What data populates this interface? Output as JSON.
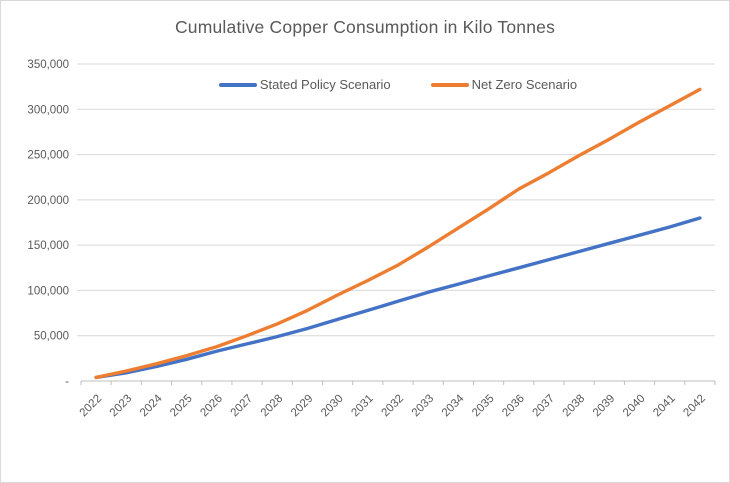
{
  "chart_data": {
    "type": "line",
    "title": "Cumulative Copper Consumption in Kilo Tonnes",
    "xlabel": "",
    "ylabel": "",
    "categories": [
      "2022",
      "2023",
      "2024",
      "2025",
      "2026",
      "2027",
      "2028",
      "2029",
      "2030",
      "2031",
      "2032",
      "2033",
      "2034",
      "2035",
      "2036",
      "2037",
      "2038",
      "2039",
      "2040",
      "2041",
      "2042"
    ],
    "series": [
      {
        "name": "Stated Policy Scenario",
        "color": "#4472C4",
        "values": [
          4000,
          9000,
          16000,
          24000,
          33000,
          41000,
          49000,
          58000,
          68000,
          78000,
          88000,
          98000,
          107000,
          116000,
          125000,
          134000,
          143000,
          152000,
          161000,
          170000,
          180000
        ]
      },
      {
        "name": "Net Zero Scenario",
        "color": "#ED7D31",
        "values": [
          4000,
          11000,
          19000,
          28000,
          38000,
          50000,
          63000,
          78000,
          95000,
          111000,
          128000,
          148000,
          169000,
          190000,
          212000,
          230000,
          249000,
          267000,
          286000,
          304000,
          322000
        ]
      }
    ],
    "ylim": [
      0,
      350000
    ],
    "ytick_interval": 50000,
    "ytick_labels": [
      "-",
      "50,000",
      "100,000",
      "150,000",
      "200,000",
      "250,000",
      "300,000",
      "350,000"
    ],
    "grid": true,
    "legend_position": "top-inside-centered",
    "x_label_rotation_deg": 45
  },
  "style": {
    "gridline_color": "#d9d9d9",
    "axis_line_color": "#bfbfbf",
    "tick_color": "#bfbfbf",
    "axis_text_color": "#595959",
    "title_color": "#595959",
    "frame_border_color": "#d9d9d9",
    "background_color": "#ffffff"
  }
}
